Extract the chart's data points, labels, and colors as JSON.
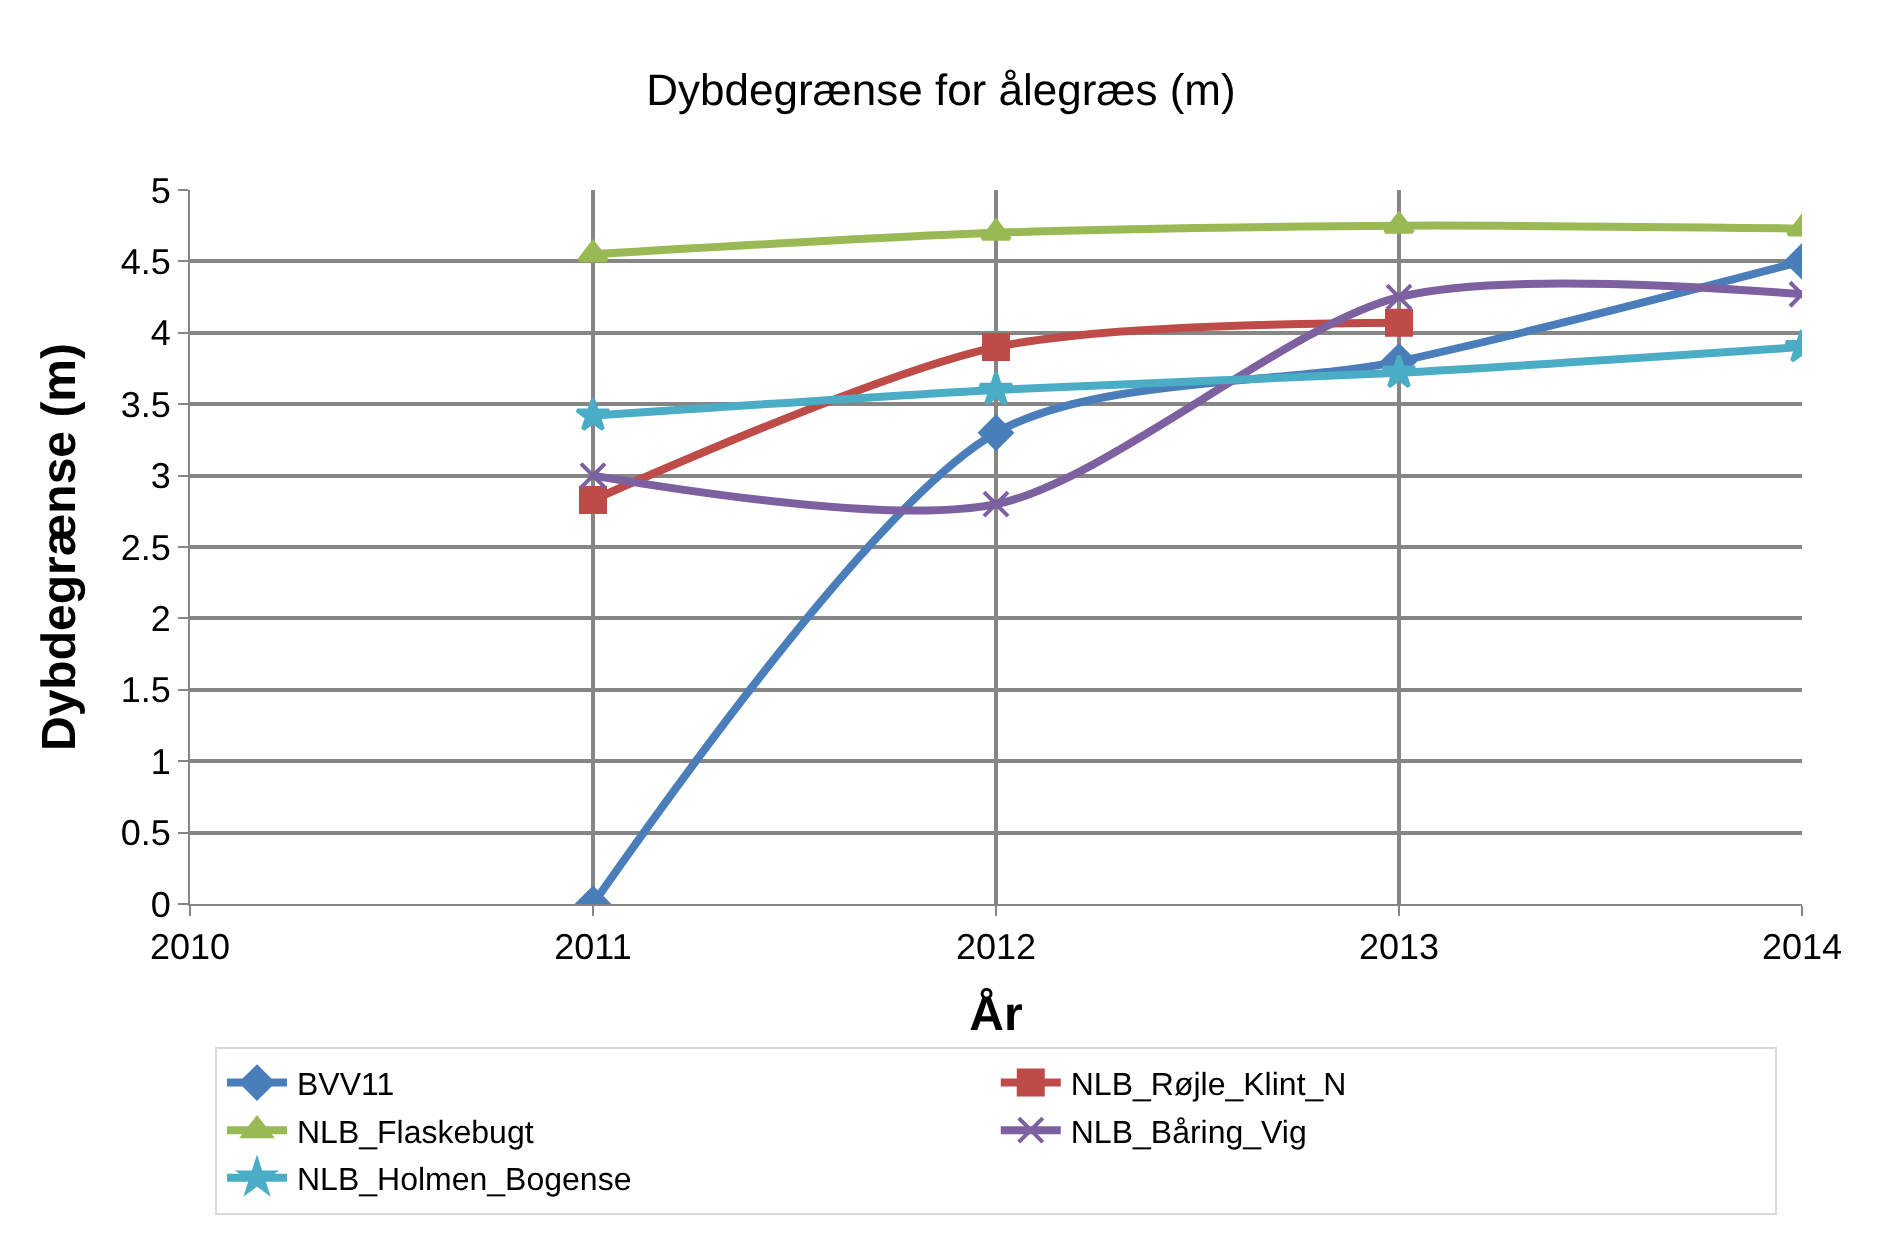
{
  "chart_data": {
    "type": "line",
    "title": "Dybdegrænse for ålegræs (m)",
    "xlabel": "År",
    "ylabel": "Dybdegrænse (m)",
    "x": [
      2011,
      2012,
      2013,
      2014
    ],
    "series": [
      {
        "name": "BVV11",
        "color": "#4a7ebb",
        "marker": "diamond",
        "values": [
          0,
          3.3,
          3.8,
          4.5
        ]
      },
      {
        "name": "NLB_Røjle_Klint_N",
        "color": "#be4b48",
        "marker": "square",
        "values": [
          2.83,
          3.9,
          4.07,
          null
        ]
      },
      {
        "name": "NLB_Flaskebugt",
        "color": "#98b954",
        "marker": "triangle",
        "values": [
          4.55,
          4.7,
          4.75,
          4.73
        ]
      },
      {
        "name": "NLB_Båring_Vig",
        "color": "#7d60a0",
        "marker": "cross",
        "values": [
          3.0,
          2.8,
          4.25,
          4.27
        ]
      },
      {
        "name": "NLB_Holmen_Bogense",
        "color": "#4bacc6",
        "marker": "star",
        "values": [
          3.42,
          3.6,
          3.72,
          3.9
        ]
      }
    ],
    "xlim": [
      2010,
      2014
    ],
    "xticks": [
      2010,
      2011,
      2012,
      2013,
      2014
    ],
    "ylim": [
      0,
      5
    ],
    "yticks": [
      0,
      0.5,
      1,
      1.5,
      2,
      2.5,
      3,
      3.5,
      4,
      4.5,
      5
    ],
    "grid": true,
    "legend": "bottom",
    "line_style": "solid"
  }
}
